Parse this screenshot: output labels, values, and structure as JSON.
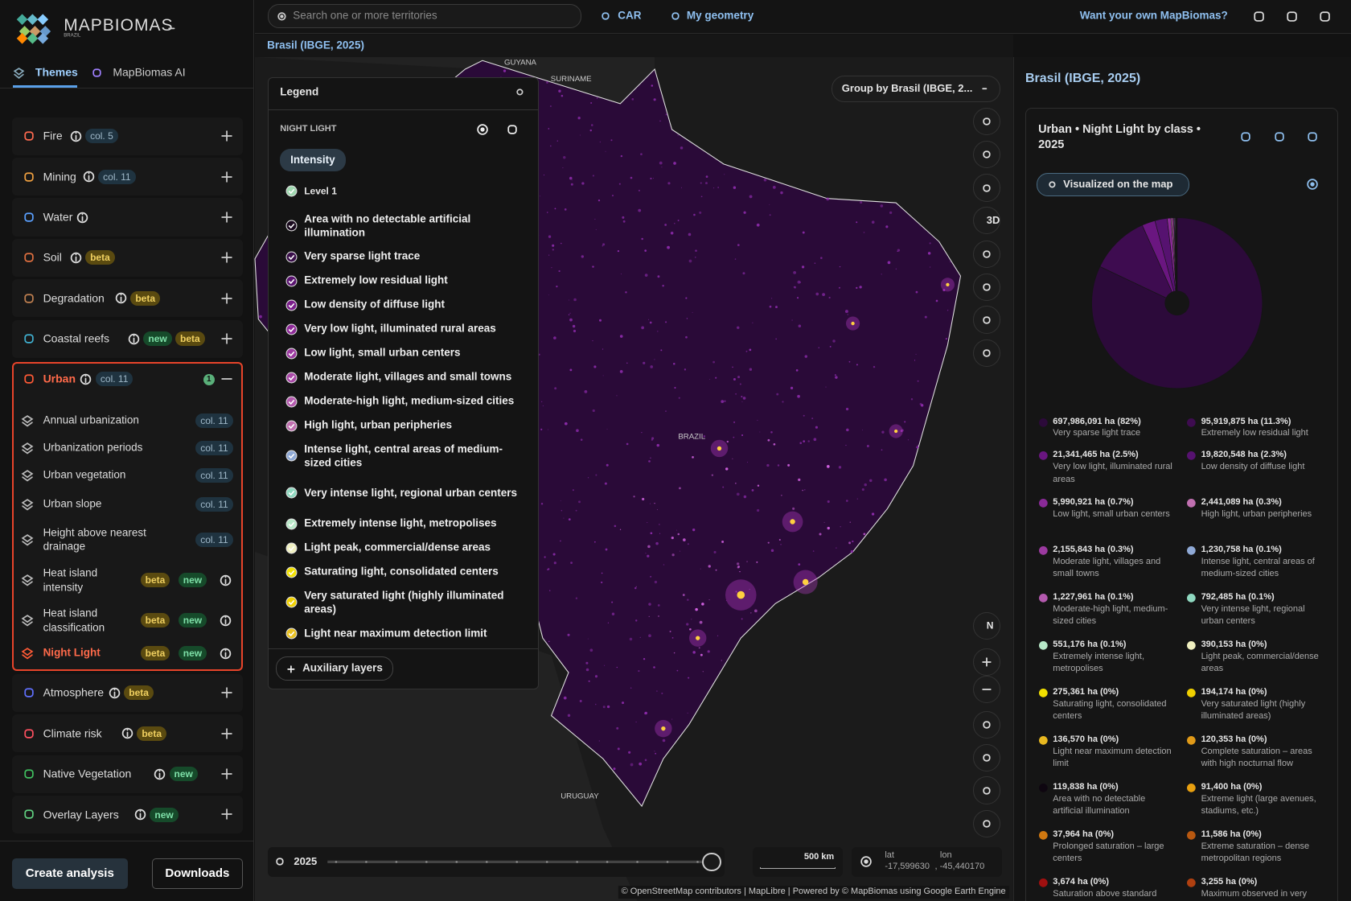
{
  "brand": {
    "name": "MAPBIOMAS",
    "country": "BRAZIL"
  },
  "tabs": [
    "Themes",
    "MapBiomas AI"
  ],
  "themes_before": [
    {
      "name": "Fire",
      "badges": [
        "col. 5"
      ],
      "color": "#ff6a50"
    },
    {
      "name": "Mining",
      "badges": [
        "col. 11"
      ],
      "color": "#f0a040"
    },
    {
      "name": "Water",
      "badges": [],
      "color": "#5aa0ff"
    },
    {
      "name": "Soil",
      "badges": [
        "beta"
      ],
      "color": "#e07040"
    },
    {
      "name": "Degradation",
      "badges": [
        "beta"
      ],
      "color": "#c08050"
    },
    {
      "name": "Coastal reefs",
      "badges": [
        "new",
        "beta"
      ],
      "color": "#40b0d0"
    }
  ],
  "urban": {
    "name": "Urban",
    "badges": [
      "col. 11"
    ],
    "active_count": 1,
    "layers": [
      {
        "name": "Annual urbanization",
        "badges": [
          "col. 11"
        ]
      },
      {
        "name": "Urbanization periods",
        "badges": [
          "col. 11"
        ]
      },
      {
        "name": "Urban vegetation",
        "badges": [
          "col. 11"
        ]
      },
      {
        "name": "Urban slope",
        "badges": [
          "col. 11"
        ]
      },
      {
        "name": "Height above nearest drainage",
        "badges": [
          "col. 11"
        ]
      },
      {
        "name": "Heat island intensity",
        "badges": [
          "beta",
          "new"
        ]
      },
      {
        "name": "Heat island classification",
        "badges": [
          "beta",
          "new"
        ]
      },
      {
        "name": "Night Light",
        "badges": [
          "beta",
          "new"
        ]
      }
    ]
  },
  "themes_after": [
    {
      "name": "Atmosphere",
      "badges": [
        "beta"
      ],
      "color": "#6070ff"
    },
    {
      "name": "Climate risk",
      "badges": [
        "beta"
      ],
      "color": "#ff5060"
    },
    {
      "name": "Native Vegetation",
      "badges": [
        "new"
      ],
      "color": "#40c060"
    },
    {
      "name": "Overlay Layers",
      "badges": [
        "new"
      ],
      "color": "#60d080"
    }
  ],
  "actions": [
    "Create analysis",
    "Downloads"
  ],
  "top_bar": {
    "search_placeholder": "Search one or more territories",
    "car": "CAR",
    "my_geometry": "My geometry",
    "own_mapbiomas": "Want your own MapBiomas?"
  },
  "breadcrumb": "Brasil (IBGE, 2025)",
  "legend": {
    "title": "Legend",
    "section": "NIGHT LIGHT",
    "tab": "Intensity",
    "level": "Level 1",
    "auxiliary": "Auxiliary layers",
    "items": [
      {
        "label": "Area with no detectable artificial illumination",
        "color": "#1a0a1e"
      },
      {
        "label": "Very sparse light trace",
        "color": "#3a0f4a"
      },
      {
        "label": "Extremely low residual light",
        "color": "#5a1470"
      },
      {
        "label": "Low density of diffuse light",
        "color": "#7a1e8a"
      },
      {
        "label": "Very low light, illuminated rural areas",
        "color": "#8e2a98"
      },
      {
        "label": "Low light, small urban centers",
        "color": "#9c3aa0"
      },
      {
        "label": "Moderate light, villages and small towns",
        "color": "#aa4aa8"
      },
      {
        "label": "Moderate-high light, medium-sized cities",
        "color": "#b45aae"
      },
      {
        "label": "High light, urban peripheries",
        "color": "#c070b0"
      },
      {
        "label": "Intense light, central areas of medium-sized cities",
        "color": "#8fa9d6"
      },
      {
        "label": "Very intense light, regional urban centers",
        "color": "#8fd8c0"
      },
      {
        "label": "Extremely intense light, metropolises",
        "color": "#b8e8c8"
      },
      {
        "label": "Light peak, commercial/dense areas",
        "color": "#f0f0c0"
      },
      {
        "label": "Saturating light, consolidated centers",
        "color": "#f2e000"
      },
      {
        "label": "Very saturated light (highly illuminated areas)",
        "color": "#f0d000"
      },
      {
        "label": "Light near maximum detection limit",
        "color": "#e8c020"
      }
    ]
  },
  "map": {
    "group_by": "Group by Brasil (IBGE, 2...",
    "labels": [
      {
        "text": "GUYANA",
        "x": 604,
        "y": 75
      },
      {
        "text": "SURINAME",
        "x": 663,
        "y": 94
      },
      {
        "text": "BRAZIL",
        "x": 803,
        "y": 509
      },
      {
        "text": "URUGUAY",
        "x": 673,
        "y": 926
      }
    ],
    "three_d": "3D",
    "north": "N",
    "year": "2025",
    "scale": "500 km",
    "lat_label": "lat",
    "lon_label": "lon",
    "lat": "-17,599630",
    "lon": ", -45,440170",
    "attribution": "© OpenStreetMap contributors | MapLibre | Powered by © MapBiomas using Google Earth Engine"
  },
  "panel": {
    "title": "Brasil (IBGE, 2025)",
    "card_title": "Urban • Night Light by class • 2025",
    "visualized": "Visualized on the map",
    "items": [
      {
        "area": 697986091,
        "area_label": "697,986,091 ha (82%)",
        "label": "Very sparse light trace",
        "color": "#2c0a3a"
      },
      {
        "area": 95919875,
        "area_label": "95,919,875 ha (11.3%)",
        "label": "Extremely low residual light",
        "color": "#3e0c50"
      },
      {
        "area": 21341465,
        "area_label": "21,341,465 ha (2.5%)",
        "label": "Very low light, illuminated rural areas",
        "color": "#6a1680"
      },
      {
        "area": 19820548,
        "area_label": "19,820,548 ha (2.3%)",
        "label": "Low density of diffuse light",
        "color": "#561270"
      },
      {
        "area": 5990921,
        "area_label": "5,990,921 ha (0.7%)",
        "label": "Low light, small urban centers",
        "color": "#8a2a98"
      },
      {
        "area": 2441089,
        "area_label": "2,441,089 ha (0.3%)",
        "label": "High light, urban peripheries",
        "color": "#c070b0"
      },
      {
        "area": 2155843,
        "area_label": "2,155,843 ha (0.3%)",
        "label": "Moderate light, villages and small towns",
        "color": "#9c3aa0"
      },
      {
        "area": 1230758,
        "area_label": "1,230,758 ha (0.1%)",
        "label": "Intense light, central areas of medium-sized cities",
        "color": "#8fa9d6"
      },
      {
        "area": 1227961,
        "area_label": "1,227,961 ha (0.1%)",
        "label": "Moderate-high light, medium-sized cities",
        "color": "#b45aae"
      },
      {
        "area": 792485,
        "area_label": "792,485 ha (0.1%)",
        "label": "Very intense light, regional urban centers",
        "color": "#8fd8c0"
      },
      {
        "area": 551176,
        "area_label": "551,176 ha (0.1%)",
        "label": "Extremely intense light, metropolises",
        "color": "#b8e8c8"
      },
      {
        "area": 390153,
        "area_label": "390,153 ha (0%)",
        "label": "Light peak, commercial/dense areas",
        "color": "#f0f0c0"
      },
      {
        "area": 275361,
        "area_label": "275,361 ha (0%)",
        "label": "Saturating light, consolidated centers",
        "color": "#f2e000"
      },
      {
        "area": 194174,
        "area_label": "194,174 ha (0%)",
        "label": "Very saturated light (highly illuminated areas)",
        "color": "#f0d000"
      },
      {
        "area": 136570,
        "area_label": "136,570 ha (0%)",
        "label": "Light near maximum detection limit",
        "color": "#e8b820"
      },
      {
        "area": 120353,
        "area_label": "120,353 ha (0%)",
        "label": "Complete saturation – areas with high nocturnal flow",
        "color": "#e09a18"
      },
      {
        "area": 119838,
        "area_label": "119,838 ha (0%)",
        "label": "Area with no detectable artificial illumination",
        "color": "#0e0610"
      },
      {
        "area": 91400,
        "area_label": "91,400 ha (0%)",
        "label": "Extreme light (large avenues, stadiums, etc.)",
        "color": "#e8a010"
      },
      {
        "area": 37964,
        "area_label": "37,964 ha (0%)",
        "label": "Prolonged saturation – large centers",
        "color": "#d07810"
      },
      {
        "area": 11586,
        "area_label": "11,586 ha (0%)",
        "label": "Extreme saturation – dense metropolitan regions",
        "color": "#b85810"
      },
      {
        "area": 3674,
        "area_label": "3,674 ha (0%)",
        "label": "Saturation above standard",
        "color": "#a01010"
      },
      {
        "area": 3255,
        "area_label": "3,255 ha (0%)",
        "label": "Maximum observed in very",
        "color": "#b04010"
      }
    ]
  }
}
